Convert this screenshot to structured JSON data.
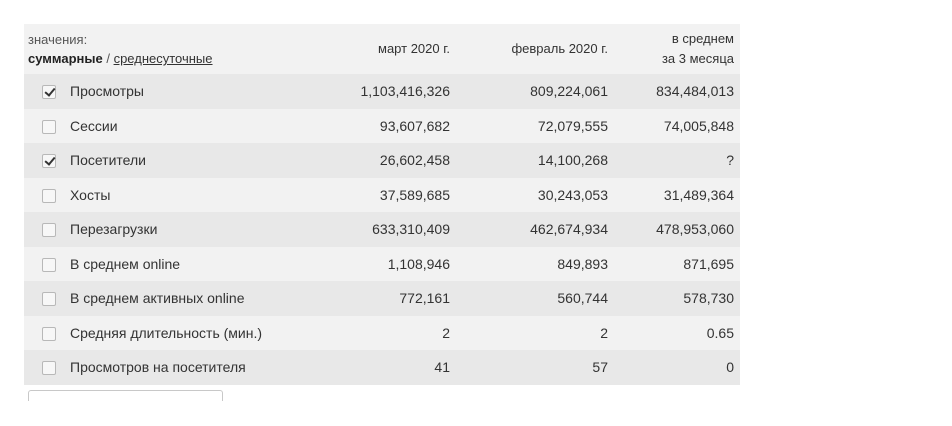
{
  "header": {
    "caption": "значения:",
    "mode_sum": "суммарные",
    "separator": " / ",
    "mode_avg": "среднесуточные",
    "col1": "март 2020 г.",
    "col2": "февраль 2020 г.",
    "col3_line1": "в среднем",
    "col3_line2": "за 3 месяца"
  },
  "rows": [
    {
      "label": "Просмотры",
      "checked": true,
      "v1": "1,103,416,326",
      "v2": "809,224,061",
      "v3": "834,484,013"
    },
    {
      "label": "Сессии",
      "checked": false,
      "v1": "93,607,682",
      "v2": "72,079,555",
      "v3": "74,005,848"
    },
    {
      "label": "Посетители",
      "checked": true,
      "v1": "26,602,458",
      "v2": "14,100,268",
      "v3": "?"
    },
    {
      "label": "Хосты",
      "checked": false,
      "v1": "37,589,685",
      "v2": "30,243,053",
      "v3": "31,489,364"
    },
    {
      "label": "Перезагрузки",
      "checked": false,
      "v1": "633,310,409",
      "v2": "462,674,934",
      "v3": "478,953,060"
    },
    {
      "label": "В среднем online",
      "checked": false,
      "v1": "1,108,946",
      "v2": "849,893",
      "v3": "871,695"
    },
    {
      "label": "В среднем активных online",
      "checked": false,
      "v1": "772,161",
      "v2": "560,744",
      "v3": "578,730"
    },
    {
      "label": "Средняя длительность (мин.)",
      "checked": false,
      "v1": "2",
      "v2": "2",
      "v3": "0.65"
    },
    {
      "label": "Просмотров на посетителя",
      "checked": false,
      "v1": "41",
      "v2": "57",
      "v3": "0"
    }
  ]
}
